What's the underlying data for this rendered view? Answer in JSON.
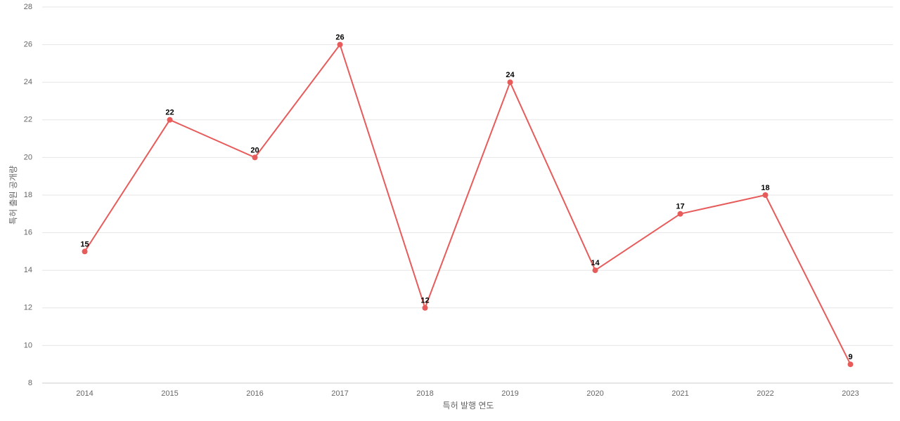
{
  "chart_data": {
    "type": "line",
    "x_label": "특허 발행 연도",
    "y_label": "특허 출원 공개량",
    "categories": [
      "2014",
      "2015",
      "2016",
      "2017",
      "2018",
      "2019",
      "2020",
      "2021",
      "2022",
      "2023"
    ],
    "series": [
      {
        "name": "특허 출원 공개량",
        "color": "#e85b5b",
        "values": [
          15,
          22,
          20,
          26,
          12,
          24,
          14,
          17,
          18,
          9
        ]
      }
    ],
    "ylim": [
      8,
      28
    ],
    "yticks": [
      8,
      10,
      12,
      14,
      16,
      18,
      20,
      22,
      24,
      26,
      28
    ],
    "grid": true
  }
}
